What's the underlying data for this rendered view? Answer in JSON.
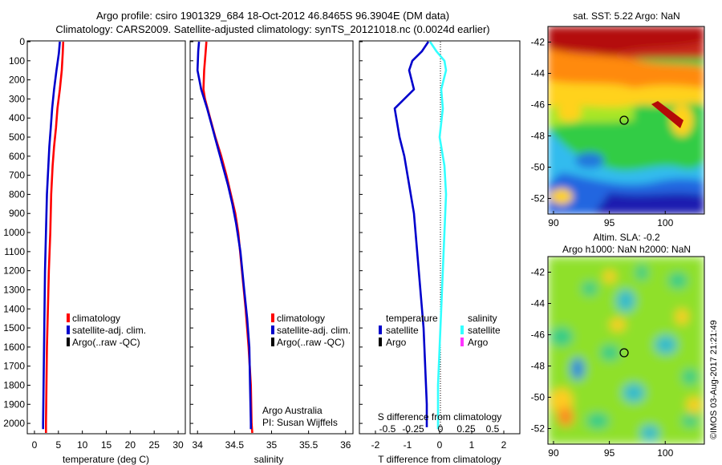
{
  "header": {
    "line1": "Argo profile: csiro 1901329_684 18-Oct-2012 46.8465S 96.3904E (DM data)",
    "line2": "Climatology: CARS2009. Satellite-adjusted climatology: synTS_20121018.nc (0.0024d earlier)"
  },
  "credit": "©IMOS 03-Aug-2017 21:21:49",
  "colors": {
    "climatology": "#ff0000",
    "satellite": "#0000cc",
    "argo": "#000000",
    "salinity_satellite": "#33ffff",
    "salinity_argo": "#ff33ff"
  },
  "chart_data": [
    {
      "type": "line",
      "name": "temperature_profile",
      "xlabel": "temperature (deg C)",
      "xlim": [
        -1.5,
        31.5
      ],
      "xticks": [
        0,
        5,
        10,
        15,
        20,
        25,
        30
      ],
      "ylim": [
        0,
        2050
      ],
      "yticks": [
        0,
        100,
        200,
        300,
        400,
        500,
        600,
        700,
        800,
        900,
        1000,
        1100,
        1200,
        1300,
        1400,
        1500,
        1600,
        1700,
        1800,
        1900,
        2000
      ],
      "y_reversed": true,
      "legend": [
        "climatology",
        "satellite-adj. clim.",
        "Argo(..raw -QC)"
      ],
      "series": [
        {
          "name": "climatology",
          "color": "#ff0000",
          "points": [
            [
              6.0,
              0
            ],
            [
              5.9,
              60
            ],
            [
              5.7,
              150
            ],
            [
              5.3,
              250
            ],
            [
              4.8,
              350
            ],
            [
              4.5,
              450
            ],
            [
              4.1,
              550
            ],
            [
              3.8,
              650
            ],
            [
              3.5,
              800
            ],
            [
              3.3,
              1000
            ],
            [
              3.0,
              1200
            ],
            [
              2.8,
              1400
            ],
            [
              2.6,
              1600
            ],
            [
              2.5,
              1800
            ],
            [
              2.4,
              2000
            ],
            [
              2.4,
              2050
            ]
          ]
        },
        {
          "name": "satellite-adj. clim.",
          "color": "#0000cc",
          "points": [
            [
              5.3,
              0
            ],
            [
              5.1,
              60
            ],
            [
              4.6,
              150
            ],
            [
              4.1,
              250
            ],
            [
              3.7,
              350
            ],
            [
              3.4,
              450
            ],
            [
              3.1,
              550
            ],
            [
              2.9,
              650
            ],
            [
              2.6,
              800
            ],
            [
              2.4,
              1000
            ],
            [
              2.2,
              1200
            ],
            [
              2.1,
              1400
            ],
            [
              2.0,
              1600
            ],
            [
              1.9,
              1800
            ],
            [
              1.8,
              2000
            ],
            [
              1.8,
              2030
            ]
          ]
        }
      ]
    },
    {
      "type": "line",
      "name": "salinity_profile",
      "xlabel": "salinity",
      "xlim": [
        33.9,
        36.1
      ],
      "xticks": [
        34,
        34.5,
        35,
        35.5,
        36
      ],
      "xticklabels": [
        "34",
        "34.5",
        "35",
        "35.5",
        "36"
      ],
      "ylim": [
        0,
        2050
      ],
      "y_reversed": true,
      "legend": [
        "climatology",
        "satellite-adj. clim.",
        "Argo(..raw -QC)"
      ],
      "annotation": [
        "Argo Australia",
        "PI: Susan Wijffels"
      ],
      "series": [
        {
          "name": "climatology",
          "color": "#ff0000",
          "points": [
            [
              34.12,
              0
            ],
            [
              34.11,
              50
            ],
            [
              34.09,
              150
            ],
            [
              34.08,
              250
            ],
            [
              34.1,
              300
            ],
            [
              34.17,
              400
            ],
            [
              34.24,
              500
            ],
            [
              34.32,
              600
            ],
            [
              34.39,
              700
            ],
            [
              34.45,
              800
            ],
            [
              34.51,
              900
            ],
            [
              34.55,
              1000
            ],
            [
              34.6,
              1200
            ],
            [
              34.65,
              1400
            ],
            [
              34.69,
              1600
            ],
            [
              34.72,
              1800
            ],
            [
              34.73,
              2000
            ],
            [
              34.74,
              2050
            ]
          ]
        },
        {
          "name": "satellite-adj. clim.",
          "color": "#0000cc",
          "points": [
            [
              34.02,
              0
            ],
            [
              34.01,
              50
            ],
            [
              34.0,
              150
            ],
            [
              34.05,
              250
            ],
            [
              34.13,
              350
            ],
            [
              34.2,
              450
            ],
            [
              34.27,
              550
            ],
            [
              34.34,
              650
            ],
            [
              34.41,
              750
            ],
            [
              34.47,
              850
            ],
            [
              34.52,
              950
            ],
            [
              34.58,
              1100
            ],
            [
              34.63,
              1300
            ],
            [
              34.67,
              1450
            ],
            [
              34.7,
              1600
            ],
            [
              34.71,
              1800
            ],
            [
              34.72,
              2000
            ],
            [
              34.72,
              2030
            ]
          ]
        }
      ]
    },
    {
      "type": "line",
      "name": "difference_profile",
      "xlabel": "T difference from climatology",
      "xlim": [
        -2.5,
        2.5
      ],
      "xticks": [
        -2,
        -1,
        0,
        1,
        2
      ],
      "top_label": "S difference from climatology",
      "top_ticks": [
        "-0.5",
        "-0.25",
        "0",
        "0.25",
        "0.5"
      ],
      "ylim": [
        0,
        2050
      ],
      "y_reversed": true,
      "legend_left": [
        "temperature",
        "satellite",
        "Argo"
      ],
      "legend_right": [
        "salinity",
        "satellite",
        "Argo"
      ],
      "series": [
        {
          "name": "temperature satellite",
          "color": "#0000cc",
          "points": [
            [
              -0.35,
              0
            ],
            [
              -0.55,
              50
            ],
            [
              -0.85,
              100
            ],
            [
              -0.95,
              150
            ],
            [
              -0.8,
              250
            ],
            [
              -1.4,
              350
            ],
            [
              -1.25,
              500
            ],
            [
              -1.1,
              600
            ],
            [
              -1.0,
              700
            ],
            [
              -0.9,
              800
            ],
            [
              -0.8,
              900
            ],
            [
              -0.7,
              1100
            ],
            [
              -0.6,
              1300
            ],
            [
              -0.5,
              1500
            ],
            [
              -0.45,
              1700
            ],
            [
              -0.4,
              1900
            ],
            [
              -0.4,
              2020
            ]
          ]
        },
        {
          "name": "salinity satellite",
          "color": "#33ffff",
          "points": [
            [
              -0.3,
              0
            ],
            [
              -0.1,
              50
            ],
            [
              0.15,
              100
            ],
            [
              0.2,
              150
            ],
            [
              0.05,
              250
            ],
            [
              0.1,
              350
            ],
            [
              0.0,
              500
            ],
            [
              0.15,
              650
            ],
            [
              0.2,
              800
            ],
            [
              0.15,
              1000
            ],
            [
              0.1,
              1200
            ],
            [
              0.05,
              1400
            ],
            [
              0.0,
              1600
            ],
            [
              -0.05,
              1800
            ],
            [
              -0.05,
              2000
            ],
            [
              -0.05,
              2030
            ]
          ]
        }
      ]
    },
    {
      "type": "heatmap",
      "name": "sst_map",
      "title": "sat. SST: 5.22 Argo: NaN",
      "xlim": [
        89.5,
        103.5
      ],
      "xticks": [
        90,
        95,
        100
      ],
      "ylim": [
        -53,
        -41
      ],
      "yticks": [
        -42,
        -44,
        -46,
        -48,
        -50,
        -52
      ],
      "marker": [
        96.39,
        -46.85
      ]
    },
    {
      "type": "heatmap",
      "name": "sla_map",
      "title": [
        "Altim. SLA: -0.2",
        "Argo h1000: NaN h2000: NaN"
      ],
      "xlim": [
        89.5,
        103.5
      ],
      "xticks": [
        90,
        95,
        100
      ],
      "ylim": [
        -53,
        -41
      ],
      "yticks": [
        -42,
        -44,
        -46,
        -48,
        -50,
        -52
      ],
      "marker": [
        96.39,
        -46.85
      ]
    }
  ]
}
